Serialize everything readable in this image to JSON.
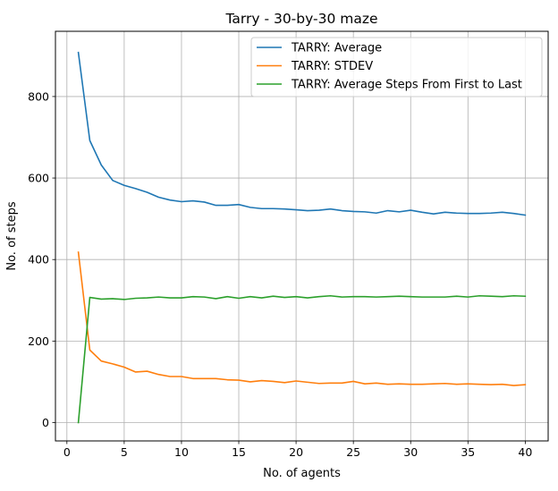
{
  "chart_data": {
    "type": "line",
    "title": "Tarry - 30-by-30 maze",
    "xlabel": "No. of agents",
    "ylabel": "No. of steps",
    "xlim": [
      -1,
      42
    ],
    "ylim": [
      -45,
      960
    ],
    "xticks": [
      0,
      5,
      10,
      15,
      20,
      25,
      30,
      35,
      40
    ],
    "yticks": [
      0,
      200,
      400,
      600,
      800
    ],
    "grid": true,
    "legend_position": "top-right",
    "x": [
      1,
      2,
      3,
      4,
      5,
      6,
      7,
      8,
      9,
      10,
      11,
      12,
      13,
      14,
      15,
      16,
      17,
      18,
      19,
      20,
      21,
      22,
      23,
      24,
      25,
      26,
      27,
      28,
      29,
      30,
      31,
      32,
      33,
      34,
      35,
      36,
      37,
      38,
      39,
      40
    ],
    "series": [
      {
        "name": "TARRY: Average",
        "color": "#1f77b4",
        "values": [
          908,
          692,
          632,
          594,
          582,
          574,
          565,
          553,
          546,
          542,
          544,
          541,
          533,
          533,
          535,
          528,
          525,
          525,
          524,
          522,
          520,
          521,
          524,
          520,
          518,
          517,
          514,
          520,
          517,
          521,
          516,
          512,
          516,
          514,
          513,
          513,
          514,
          516,
          513,
          509
        ]
      },
      {
        "name": "TARRY: STDEV",
        "color": "#ff7f0e",
        "values": [
          418,
          178,
          151,
          144,
          136,
          124,
          126,
          118,
          113,
          113,
          108,
          108,
          108,
          105,
          104,
          100,
          103,
          101,
          98,
          102,
          99,
          96,
          97,
          97,
          101,
          95,
          97,
          94,
          95,
          94,
          94,
          95,
          96,
          94,
          95,
          94,
          93,
          94,
          91,
          93
        ]
      },
      {
        "name": "TARRY: Average Steps From First to Last",
        "color": "#2ca02c",
        "values": [
          0,
          307,
          303,
          304,
          302,
          305,
          306,
          308,
          306,
          306,
          309,
          308,
          304,
          309,
          305,
          309,
          306,
          310,
          307,
          309,
          306,
          309,
          311,
          308,
          309,
          309,
          308,
          309,
          310,
          309,
          308,
          308,
          308,
          310,
          308,
          311,
          310,
          309,
          311,
          310
        ]
      }
    ]
  }
}
